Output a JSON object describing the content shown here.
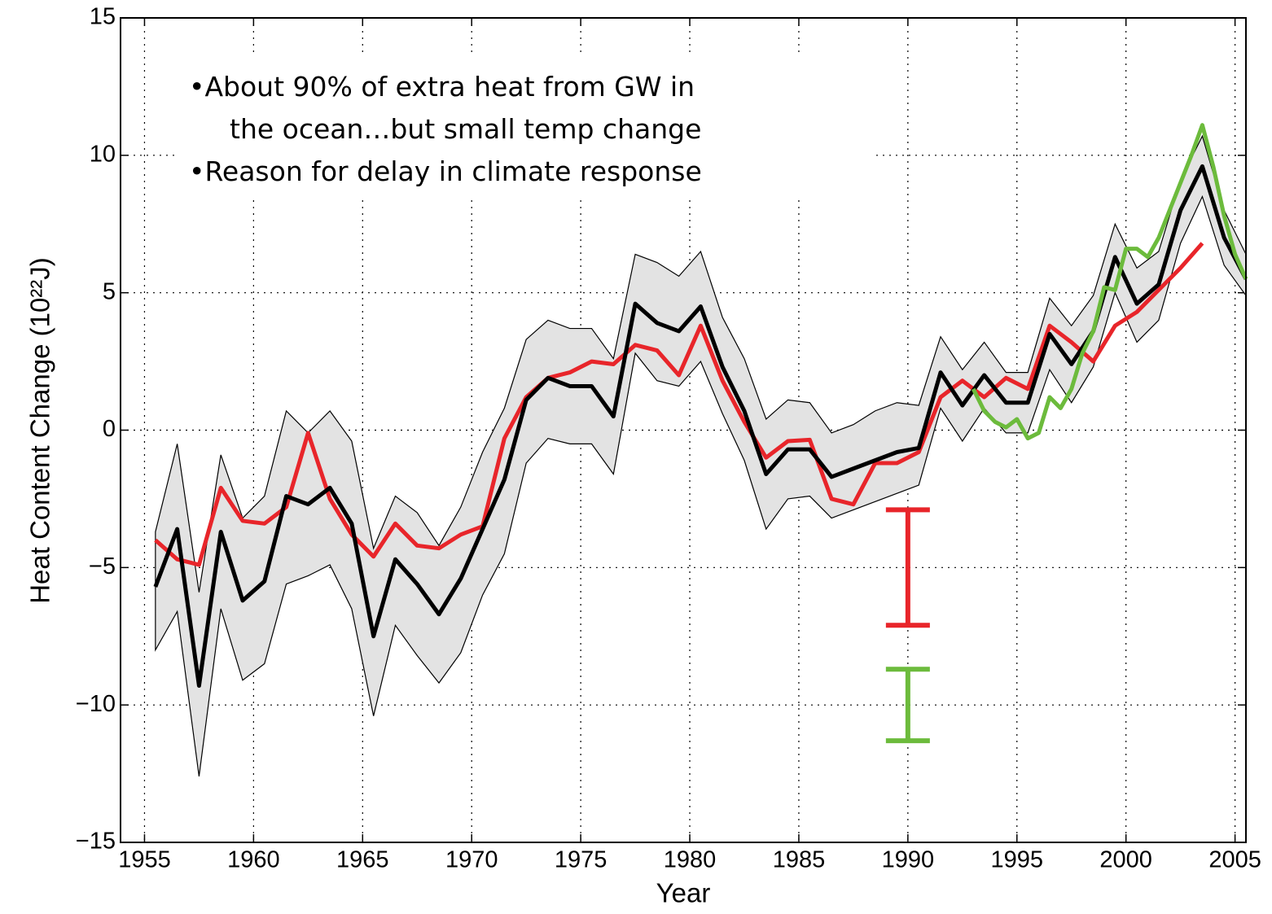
{
  "chart_data": {
    "type": "line",
    "xlabel": "Year",
    "ylabel": "Heat Content Change (10²²J)",
    "xlim": [
      1953.9,
      2005.5
    ],
    "ylim": [
      -15,
      15
    ],
    "xticks": [
      1955,
      1960,
      1965,
      1970,
      1975,
      1980,
      1985,
      1990,
      1995,
      2000,
      2005
    ],
    "yticks": [
      {
        "value": -15,
        "label": "−15"
      },
      {
        "value": -10,
        "label": "−10"
      },
      {
        "value": -5,
        "label": "−5"
      },
      0,
      5,
      10,
      15
    ],
    "grid": true,
    "x": [
      1955.5,
      1956.5,
      1957.5,
      1958.5,
      1959.5,
      1960.5,
      1961.5,
      1962.5,
      1963.5,
      1964.5,
      1965.5,
      1966.5,
      1967.5,
      1968.5,
      1969.5,
      1970.5,
      1971.5,
      1972.5,
      1973.5,
      1974.5,
      1975.5,
      1976.5,
      1977.5,
      1978.5,
      1979.5,
      1980.5,
      1981.5,
      1982.5,
      1983.5,
      1984.5,
      1985.5,
      1986.5,
      1987.5,
      1988.5,
      1989.5,
      1990.5,
      1991.5,
      1992.5,
      1993.5,
      1994.5,
      1995.5,
      1996.5,
      1997.5,
      1998.5,
      1999.5,
      2000.5,
      2001.5,
      2002.5,
      2003.5,
      2004.5,
      2005.5
    ],
    "series": [
      {
        "color": "#000000",
        "values": [
          -5.7,
          -3.6,
          -9.3,
          -3.7,
          -6.2,
          -5.5,
          -2.4,
          -2.7,
          -2.1,
          -3.4,
          -7.5,
          -4.7,
          -5.6,
          -6.7,
          -5.4,
          -3.6,
          -1.8,
          1.1,
          1.9,
          1.6,
          1.6,
          0.5,
          4.6,
          3.9,
          3.6,
          4.5,
          2.3,
          0.7,
          -1.6,
          -0.7,
          -0.7,
          -1.7,
          -1.4,
          -1.1,
          -0.8,
          -0.65,
          2.1,
          0.9,
          2.0,
          1.0,
          1.0,
          3.5,
          2.4,
          3.6,
          6.3,
          4.6,
          5.3,
          8.0,
          9.6,
          7.0,
          5.5
        ],
        "upper": [
          -3.7,
          -0.5,
          -5.9,
          -0.9,
          -3.2,
          -2.4,
          0.7,
          -0.1,
          0.7,
          -0.4,
          -4.3,
          -2.4,
          -3.0,
          -4.2,
          -2.8,
          -0.8,
          0.8,
          3.3,
          4.0,
          3.7,
          3.7,
          2.6,
          6.4,
          6.1,
          5.6,
          6.5,
          4.1,
          2.6,
          0.4,
          1.1,
          1.0,
          -0.1,
          0.2,
          0.7,
          1.0,
          0.9,
          3.4,
          2.2,
          3.2,
          2.1,
          2.1,
          4.8,
          3.8,
          4.9,
          7.5,
          5.9,
          6.5,
          9.1,
          10.7,
          8.0,
          6.4
        ],
        "lower": [
          -8.0,
          -6.6,
          -12.6,
          -6.5,
          -9.1,
          -8.5,
          -5.6,
          -5.3,
          -4.9,
          -6.5,
          -10.4,
          -7.1,
          -8.2,
          -9.2,
          -8.1,
          -6.0,
          -4.5,
          -1.2,
          -0.3,
          -0.5,
          -0.5,
          -1.6,
          2.8,
          1.8,
          1.6,
          2.5,
          0.6,
          -1.1,
          -3.6,
          -2.5,
          -2.4,
          -3.2,
          -2.9,
          -2.6,
          -2.3,
          -2.0,
          0.8,
          -0.4,
          0.8,
          -0.1,
          -0.1,
          2.2,
          1.0,
          2.3,
          5.0,
          3.2,
          4.0,
          6.8,
          8.5,
          6.0,
          4.9
        ]
      },
      {
        "color": "#e8252a",
        "values": [
          -4.0,
          -4.7,
          -4.9,
          -2.1,
          -3.3,
          -3.4,
          -2.8,
          -0.1,
          -2.5,
          -3.8,
          -4.6,
          -3.4,
          -4.2,
          -4.3,
          -3.8,
          -3.5,
          -0.3,
          1.2,
          1.9,
          2.1,
          2.5,
          2.4,
          3.1,
          2.9,
          2.0,
          3.8,
          1.8,
          0.3,
          -1.0,
          -0.4,
          -0.35,
          -2.5,
          -2.7,
          -1.2,
          -1.2,
          -0.8,
          1.2,
          1.8,
          1.2,
          1.9,
          1.5,
          3.8,
          3.2,
          2.5,
          3.8,
          4.3,
          5.1,
          5.9,
          6.8,
          null,
          null
        ]
      },
      {
        "color": "#6cbb3c",
        "x": [
          1993.0,
          1993.5,
          1994.0,
          1994.5,
          1995.0,
          1995.5,
          1996.0,
          1996.5,
          1997.0,
          1997.5,
          1998.0,
          1998.5,
          1999.0,
          1999.5,
          2000.0,
          2000.5,
          2001.0,
          2001.5,
          2002.0,
          2002.5,
          2003.0,
          2003.5,
          2004.0,
          2004.5,
          2005.0,
          2005.5
        ],
        "values": [
          1.5,
          0.7,
          0.3,
          0.1,
          0.4,
          -0.3,
          -0.1,
          1.2,
          0.8,
          1.5,
          2.8,
          3.6,
          5.2,
          5.1,
          6.6,
          6.6,
          6.3,
          7.0,
          8.0,
          9.0,
          10.0,
          11.1,
          9.6,
          7.8,
          6.4,
          5.5
        ]
      }
    ],
    "error_bars": [
      {
        "x": 1990,
        "low": -7.1,
        "high": -2.9,
        "color": "#e8252a"
      },
      {
        "x": 1990,
        "low": -11.3,
        "high": -8.7,
        "color": "#6cbb3c"
      }
    ],
    "annotations": [
      "•About 90% of extra heat from GW in",
      "the ocean…but small temp change",
      "•Reason for delay in climate response"
    ],
    "annotation_color": "#a8162e"
  }
}
